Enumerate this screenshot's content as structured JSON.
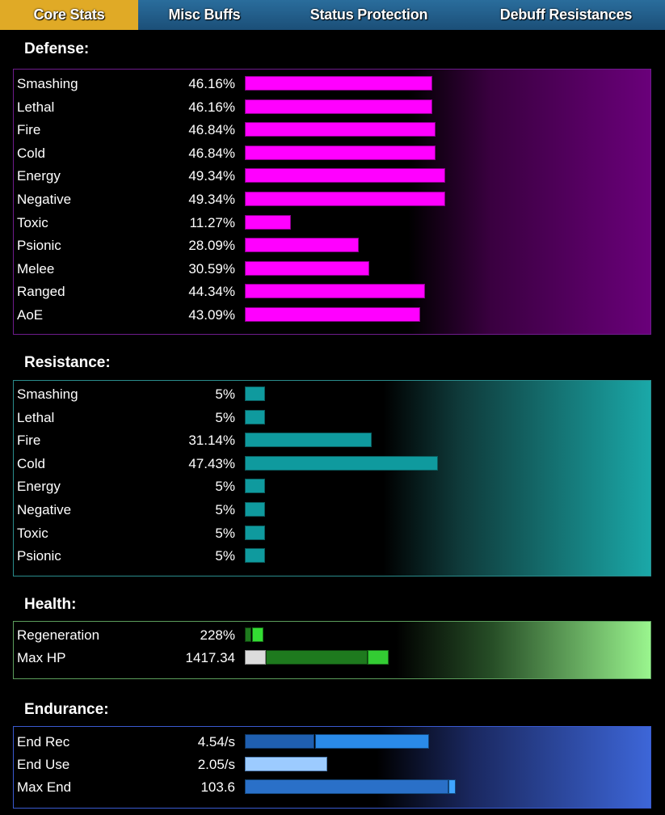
{
  "tabs": [
    {
      "label": "Core Stats",
      "active": true
    },
    {
      "label": "Misc Buffs",
      "active": false
    },
    {
      "label": "Status Protection",
      "active": false
    },
    {
      "label": "Debuff Resistances",
      "active": false
    }
  ],
  "colors": {
    "defense_bar": "#ff00ff",
    "resistance_bar": "#0f9a9e",
    "health_bar_dark": "#1e7a1e",
    "health_bar_bright": "#33cc33",
    "endurance_bar": "#2a8ae8",
    "active_tab": "#e0aa26"
  },
  "defense": {
    "title": "Defense:",
    "rows": [
      {
        "label": "Smashing",
        "value": "46.16%",
        "pct": 46.16
      },
      {
        "label": "Lethal",
        "value": "46.16%",
        "pct": 46.16
      },
      {
        "label": "Fire",
        "value": "46.84%",
        "pct": 46.84
      },
      {
        "label": "Cold",
        "value": "46.84%",
        "pct": 46.84
      },
      {
        "label": "Energy",
        "value": "49.34%",
        "pct": 49.34
      },
      {
        "label": "Negative",
        "value": "49.34%",
        "pct": 49.34
      },
      {
        "label": "Toxic",
        "value": "11.27%",
        "pct": 11.27
      },
      {
        "label": "Psionic",
        "value": "28.09%",
        "pct": 28.09
      },
      {
        "label": "Melee",
        "value": "30.59%",
        "pct": 30.59
      },
      {
        "label": "Ranged",
        "value": "44.34%",
        "pct": 44.34
      },
      {
        "label": "AoE",
        "value": "43.09%",
        "pct": 43.09
      }
    ]
  },
  "resistance": {
    "title": "Resistance:",
    "rows": [
      {
        "label": "Smashing",
        "value": "5%",
        "pct": 5
      },
      {
        "label": "Lethal",
        "value": "5%",
        "pct": 5
      },
      {
        "label": "Fire",
        "value": "31.14%",
        "pct": 31.14
      },
      {
        "label": "Cold",
        "value": "47.43%",
        "pct": 47.43
      },
      {
        "label": "Energy",
        "value": "5%",
        "pct": 5
      },
      {
        "label": "Negative",
        "value": "5%",
        "pct": 5
      },
      {
        "label": "Toxic",
        "value": "5%",
        "pct": 5
      },
      {
        "label": "Psionic",
        "value": "5%",
        "pct": 5
      }
    ]
  },
  "health": {
    "title": "Health:",
    "rows": [
      {
        "label": "Regeneration",
        "value": "228%"
      },
      {
        "label": "Max HP",
        "value": "1417.34"
      }
    ]
  },
  "endurance": {
    "title": "Endurance:",
    "rows": [
      {
        "label": "End Rec",
        "value": "4.54/s"
      },
      {
        "label": "End Use",
        "value": "2.05/s"
      },
      {
        "label": "Max End",
        "value": "103.6"
      }
    ]
  }
}
